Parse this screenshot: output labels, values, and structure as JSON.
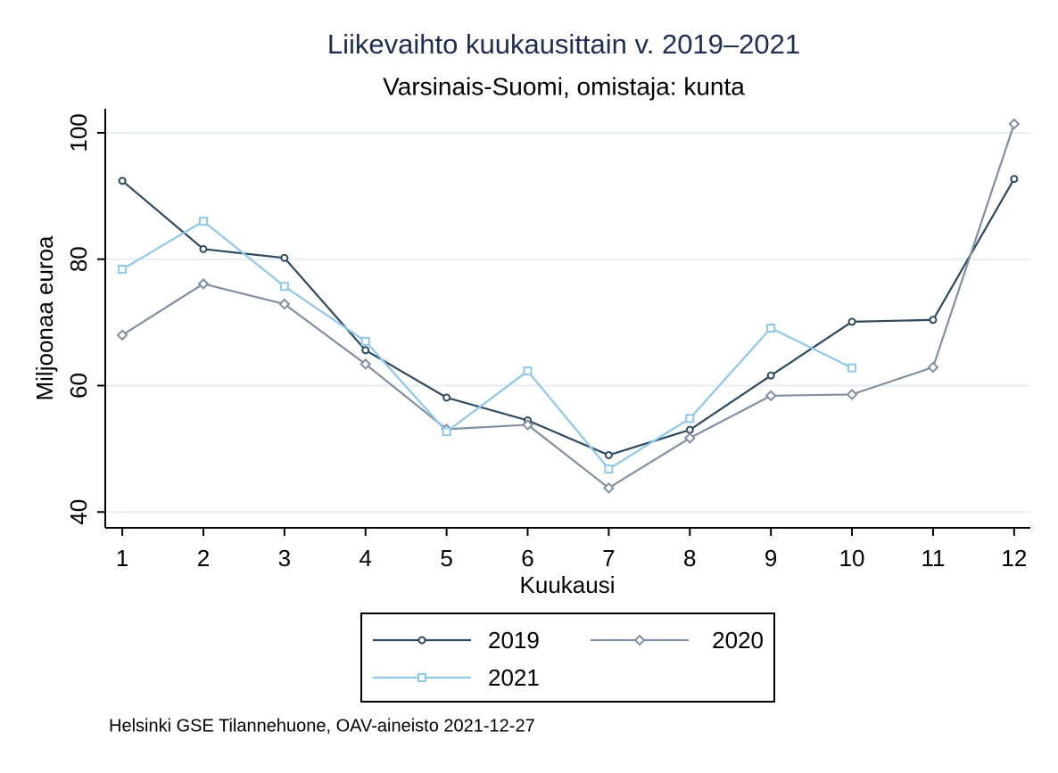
{
  "chart_data": {
    "type": "line",
    "title": "Liikevaihto kuukausittain v. 2019–2021",
    "subtitle": "Varsinais-Suomi, omistaja: kunta",
    "x_label": "Kuukausi",
    "y_label": "Miljoonaa euroa",
    "note": "Helsinki GSE Tilannehuone, OAV-aineisto 2021-12-27",
    "x": [
      1,
      2,
      3,
      4,
      5,
      6,
      7,
      8,
      9,
      10,
      11,
      12
    ],
    "series": [
      {
        "name": "2019",
        "color": "#2e4a5f",
        "marker": "circle",
        "values": [
          92.4,
          81.6,
          80.2,
          65.6,
          58.1,
          54.5,
          49.0,
          53.0,
          61.6,
          70.1,
          70.4,
          92.7
        ]
      },
      {
        "name": "2020",
        "color": "#8090a2",
        "marker": "diamond",
        "values": [
          68.0,
          76.1,
          72.9,
          63.4,
          53.1,
          53.8,
          43.8,
          51.7,
          58.4,
          58.6,
          62.9,
          101.4
        ]
      },
      {
        "name": "2021",
        "color": "#8ec8ea",
        "marker": "square",
        "values": [
          78.4,
          86.0,
          75.7,
          67.0,
          52.7,
          62.3,
          46.8,
          54.8,
          69.1,
          62.8,
          null,
          null
        ]
      }
    ],
    "xlim": [
      0.79,
      12.2
    ],
    "xticks": [
      1,
      2,
      3,
      4,
      5,
      6,
      7,
      8,
      9,
      10,
      11,
      12
    ],
    "ylim": [
      37.5,
      103.8
    ],
    "yticks": [
      40,
      60,
      80,
      100
    ],
    "grid": true,
    "legend": "bottom"
  }
}
